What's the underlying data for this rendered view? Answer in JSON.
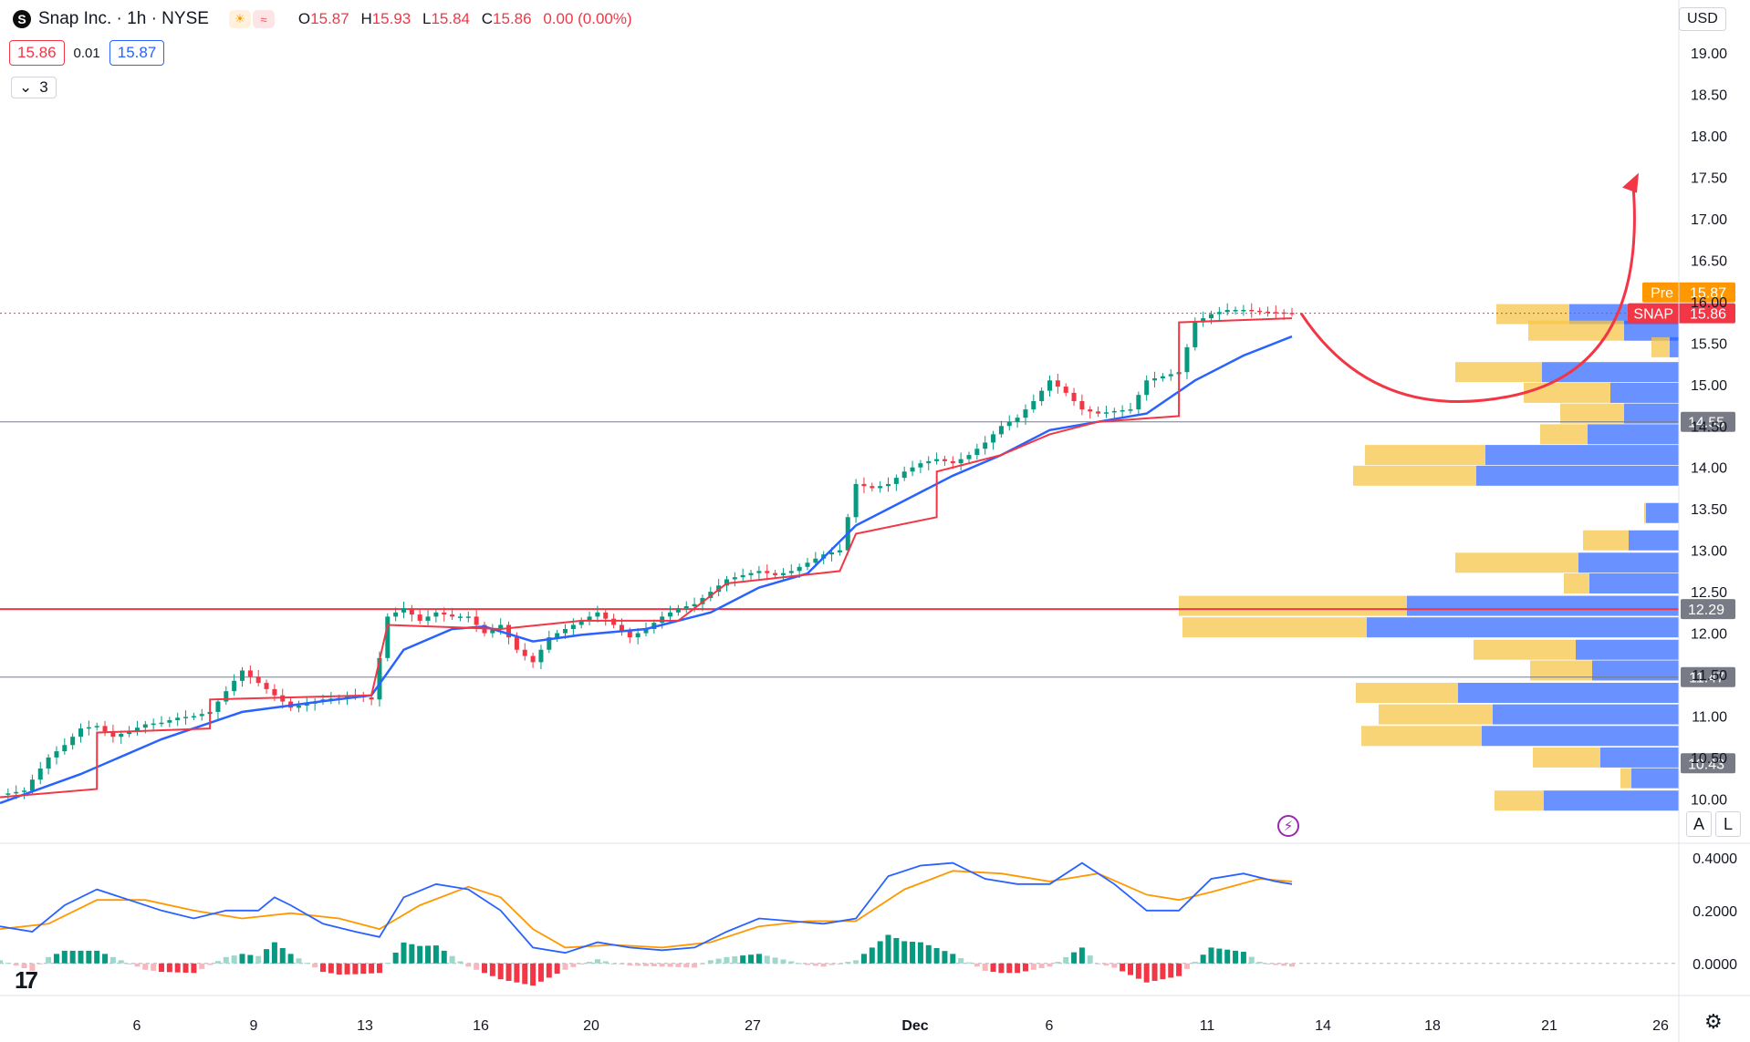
{
  "header": {
    "logo_letter": "S",
    "symbol_title": "Snap Inc. · 1h · NYSE",
    "ohlc": {
      "o_label": "O",
      "o": "15.87",
      "h_label": "H",
      "h": "15.93",
      "l_label": "L",
      "l": "15.84",
      "c_label": "C",
      "c": "15.86",
      "change": "0.00 (0.00%)"
    },
    "sell_price": "15.86",
    "spread": "0.01",
    "buy_price": "15.87",
    "indicators_count": "3",
    "currency": "USD"
  },
  "buttons": {
    "auto": "A",
    "log": "L"
  },
  "colors": {
    "up": "#089981",
    "down": "#f23645",
    "blue_ma": "#2962ff",
    "red_line": "#f23645",
    "orange": "#ff9800",
    "accent_red": "#f23645",
    "pre_market": "#ff9800"
  },
  "chart_data": {
    "type": "candlestick",
    "symbol": "SNAP",
    "timeframe": "1h",
    "x_tick_labels": [
      "6",
      "9",
      "13",
      "16",
      "20",
      "27",
      "Dec",
      "6",
      "11",
      "14",
      "18",
      "21",
      "26"
    ],
    "y_axis": {
      "ticks": [
        "10.00",
        "10.50",
        "11.00",
        "11.50",
        "12.00",
        "12.50",
        "13.00",
        "13.50",
        "14.00",
        "14.50",
        "15.00",
        "15.50",
        "16.00",
        "16.50",
        "17.00",
        "17.50",
        "18.00",
        "18.50",
        "19.00"
      ],
      "range": [
        9.85,
        19.2
      ]
    },
    "price_tags": [
      {
        "label": "Pre",
        "value": "15.87",
        "color": "#ff9800"
      },
      {
        "label": "SNAP",
        "value": "15.86",
        "color": "#f23645"
      }
    ],
    "horizontal_levels": [
      {
        "value": 12.29,
        "label": "12.29",
        "color": "#f23645",
        "style": "solid"
      },
      {
        "value": 11.47,
        "label": "11.47",
        "color": "#787b86",
        "style": "solid"
      },
      {
        "value": 14.55,
        "label": "14.55",
        "color": "#787b86",
        "style": "solid"
      },
      {
        "value": 10.43,
        "label": "10.43",
        "color": "#787b86",
        "style": "marker"
      }
    ],
    "last_price_line": 15.86,
    "price_path": [
      [
        0,
        10.05
      ],
      [
        3,
        10.1
      ],
      [
        6,
        10.5
      ],
      [
        8,
        10.65
      ],
      [
        10,
        10.85
      ],
      [
        12,
        10.88
      ],
      [
        14,
        10.75
      ],
      [
        16,
        10.82
      ],
      [
        18,
        10.9
      ],
      [
        20,
        10.92
      ],
      [
        22,
        10.98
      ],
      [
        24,
        11.0
      ],
      [
        26,
        11.05
      ],
      [
        28,
        11.3
      ],
      [
        30,
        11.55
      ],
      [
        32,
        11.4
      ],
      [
        34,
        11.25
      ],
      [
        36,
        11.1
      ],
      [
        38,
        11.15
      ],
      [
        40,
        11.2
      ],
      [
        42,
        11.22
      ],
      [
        44,
        11.25
      ],
      [
        46,
        11.2
      ],
      [
        48,
        12.2
      ],
      [
        50,
        12.3
      ],
      [
        52,
        12.15
      ],
      [
        54,
        12.25
      ],
      [
        56,
        12.2
      ],
      [
        58,
        12.2
      ],
      [
        60,
        12.0
      ],
      [
        62,
        12.1
      ],
      [
        64,
        11.8
      ],
      [
        66,
        11.65
      ],
      [
        68,
        11.95
      ],
      [
        70,
        12.05
      ],
      [
        72,
        12.15
      ],
      [
        74,
        12.25
      ],
      [
        76,
        12.1
      ],
      [
        78,
        11.95
      ],
      [
        80,
        12.05
      ],
      [
        82,
        12.2
      ],
      [
        84,
        12.3
      ],
      [
        86,
        12.35
      ],
      [
        88,
        12.5
      ],
      [
        90,
        12.65
      ],
      [
        92,
        12.7
      ],
      [
        94,
        12.75
      ],
      [
        96,
        12.7
      ],
      [
        98,
        12.75
      ],
      [
        100,
        12.85
      ],
      [
        102,
        12.95
      ],
      [
        104,
        13.0
      ],
      [
        106,
        13.8
      ],
      [
        108,
        13.75
      ],
      [
        110,
        13.8
      ],
      [
        112,
        13.95
      ],
      [
        114,
        14.05
      ],
      [
        116,
        14.1
      ],
      [
        118,
        14.05
      ],
      [
        120,
        14.15
      ],
      [
        122,
        14.3
      ],
      [
        124,
        14.5
      ],
      [
        126,
        14.6
      ],
      [
        128,
        14.8
      ],
      [
        130,
        15.05
      ],
      [
        132,
        14.9
      ],
      [
        134,
        14.7
      ],
      [
        136,
        14.65
      ],
      [
        138,
        14.68
      ],
      [
        140,
        14.7
      ],
      [
        142,
        15.05
      ],
      [
        144,
        15.1
      ],
      [
        146,
        15.15
      ],
      [
        148,
        15.75
      ],
      [
        150,
        15.85
      ],
      [
        152,
        15.9
      ],
      [
        154,
        15.9
      ],
      [
        156,
        15.88
      ],
      [
        158,
        15.87
      ],
      [
        160,
        15.86
      ]
    ],
    "blue_ma": [
      [
        0,
        9.95
      ],
      [
        10,
        10.3
      ],
      [
        20,
        10.72
      ],
      [
        30,
        11.05
      ],
      [
        40,
        11.18
      ],
      [
        46,
        11.25
      ],
      [
        50,
        11.8
      ],
      [
        56,
        12.05
      ],
      [
        60,
        12.08
      ],
      [
        66,
        11.9
      ],
      [
        72,
        11.98
      ],
      [
        80,
        12.05
      ],
      [
        88,
        12.25
      ],
      [
        94,
        12.55
      ],
      [
        100,
        12.72
      ],
      [
        106,
        13.3
      ],
      [
        112,
        13.6
      ],
      [
        118,
        13.9
      ],
      [
        124,
        14.15
      ],
      [
        130,
        14.45
      ],
      [
        136,
        14.55
      ],
      [
        142,
        14.65
      ],
      [
        148,
        15.05
      ],
      [
        154,
        15.35
      ],
      [
        160,
        15.58
      ]
    ],
    "red_line": [
      [
        0,
        10.02
      ],
      [
        12,
        10.12
      ],
      [
        12.01,
        10.8
      ],
      [
        26,
        10.85
      ],
      [
        26.01,
        11.2
      ],
      [
        46,
        11.25
      ],
      [
        48,
        12.1
      ],
      [
        62,
        12.05
      ],
      [
        72,
        12.15
      ],
      [
        84,
        12.15
      ],
      [
        86,
        12.3
      ],
      [
        90,
        12.6
      ],
      [
        104,
        12.75
      ],
      [
        106,
        13.2
      ],
      [
        116,
        13.4
      ],
      [
        116.01,
        13.95
      ],
      [
        124,
        14.15
      ],
      [
        130,
        14.4
      ],
      [
        136,
        14.55
      ],
      [
        146,
        14.62
      ],
      [
        146.01,
        15.75
      ],
      [
        160,
        15.8
      ]
    ],
    "volume_profile": [
      {
        "price": 15.85,
        "up": 80,
        "down": 120
      },
      {
        "price": 15.65,
        "up": 105,
        "down": 60
      },
      {
        "price": 15.45,
        "up": 20,
        "down": 10
      },
      {
        "price": 15.15,
        "up": 95,
        "down": 150
      },
      {
        "price": 14.9,
        "up": 95,
        "down": 75
      },
      {
        "price": 14.65,
        "up": 70,
        "down": 60
      },
      {
        "price": 14.4,
        "up": 52,
        "down": 100
      },
      {
        "price": 14.15,
        "up": 132,
        "down": 212
      },
      {
        "price": 13.9,
        "up": 135,
        "down": 222
      },
      {
        "price": 13.45,
        "up": 2,
        "down": 36
      },
      {
        "price": 13.12,
        "up": 50,
        "down": 55
      },
      {
        "price": 12.85,
        "up": 135,
        "down": 110
      },
      {
        "price": 12.6,
        "up": 28,
        "down": 98
      },
      {
        "price": 12.33,
        "up": 250,
        "down": 298
      },
      {
        "price": 12.07,
        "up": 202,
        "down": 342
      },
      {
        "price": 11.8,
        "up": 112,
        "down": 113
      },
      {
        "price": 11.55,
        "up": 68,
        "down": 95
      },
      {
        "price": 11.28,
        "up": 112,
        "down": 242
      },
      {
        "price": 11.02,
        "up": 125,
        "down": 204
      },
      {
        "price": 10.76,
        "up": 132,
        "down": 216
      },
      {
        "price": 10.5,
        "up": 74,
        "down": 86
      },
      {
        "price": 10.25,
        "up": 12,
        "down": 52
      },
      {
        "price": 9.98,
        "up": 54,
        "down": 148
      }
    ],
    "projection_arrow": {
      "color": "#f23645",
      "start": [
        160,
        15.86
      ],
      "bottom": [
        178,
        14.75
      ],
      "end": [
        206,
        17.4
      ]
    },
    "macd": {
      "y_ticks": [
        "0.4000",
        "0.2000",
        "0.0000"
      ],
      "range": [
        -0.08,
        0.42
      ],
      "macd_line": [
        [
          0,
          0.14
        ],
        [
          4,
          0.12
        ],
        [
          8,
          0.22
        ],
        [
          12,
          0.28
        ],
        [
          16,
          0.24
        ],
        [
          20,
          0.2
        ],
        [
          24,
          0.17
        ],
        [
          28,
          0.2
        ],
        [
          32,
          0.2
        ],
        [
          34,
          0.25
        ],
        [
          36,
          0.22
        ],
        [
          40,
          0.15
        ],
        [
          44,
          0.12
        ],
        [
          47,
          0.1
        ],
        [
          50,
          0.25
        ],
        [
          54,
          0.3
        ],
        [
          58,
          0.28
        ],
        [
          62,
          0.2
        ],
        [
          66,
          0.06
        ],
        [
          70,
          0.04
        ],
        [
          74,
          0.08
        ],
        [
          78,
          0.06
        ],
        [
          82,
          0.05
        ],
        [
          86,
          0.06
        ],
        [
          90,
          0.12
        ],
        [
          94,
          0.17
        ],
        [
          98,
          0.16
        ],
        [
          102,
          0.15
        ],
        [
          106,
          0.17
        ],
        [
          110,
          0.33
        ],
        [
          114,
          0.37
        ],
        [
          118,
          0.38
        ],
        [
          122,
          0.32
        ],
        [
          126,
          0.3
        ],
        [
          130,
          0.3
        ],
        [
          134,
          0.38
        ],
        [
          138,
          0.3
        ],
        [
          142,
          0.2
        ],
        [
          146,
          0.2
        ],
        [
          150,
          0.32
        ],
        [
          154,
          0.34
        ],
        [
          158,
          0.31
        ],
        [
          160,
          0.3
        ]
      ],
      "signal_line": [
        [
          0,
          0.13
        ],
        [
          6,
          0.15
        ],
        [
          12,
          0.24
        ],
        [
          18,
          0.24
        ],
        [
          24,
          0.2
        ],
        [
          30,
          0.17
        ],
        [
          36,
          0.19
        ],
        [
          42,
          0.17
        ],
        [
          47,
          0.13
        ],
        [
          52,
          0.22
        ],
        [
          58,
          0.29
        ],
        [
          62,
          0.25
        ],
        [
          66,
          0.13
        ],
        [
          70,
          0.06
        ],
        [
          76,
          0.07
        ],
        [
          82,
          0.06
        ],
        [
          88,
          0.08
        ],
        [
          94,
          0.14
        ],
        [
          100,
          0.16
        ],
        [
          106,
          0.16
        ],
        [
          112,
          0.28
        ],
        [
          118,
          0.35
        ],
        [
          124,
          0.34
        ],
        [
          130,
          0.31
        ],
        [
          136,
          0.34
        ],
        [
          142,
          0.26
        ],
        [
          146,
          0.24
        ],
        [
          150,
          0.27
        ],
        [
          156,
          0.32
        ],
        [
          160,
          0.31
        ]
      ]
    }
  }
}
